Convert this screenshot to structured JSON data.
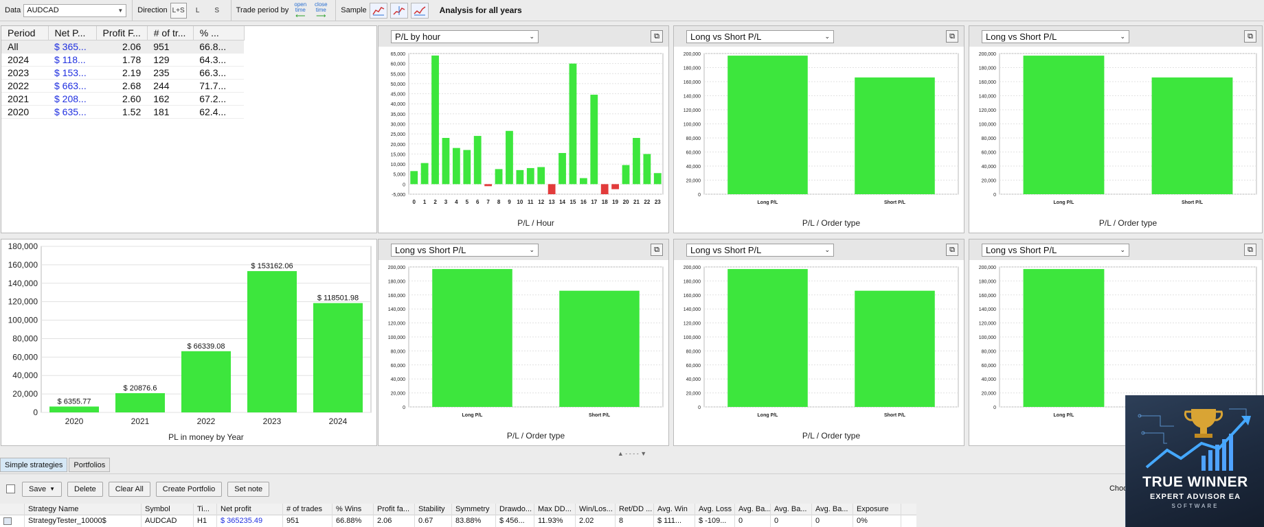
{
  "toolbar": {
    "data_label": "Data",
    "symbol_value": "AUDCAD",
    "direction_label": "Direction",
    "direction_options": [
      "L+S",
      "L",
      "S"
    ],
    "trade_period_label": "Trade period by",
    "open_time_l1": "open",
    "open_time_l2": "time",
    "close_time_l1": "close",
    "close_time_l2": "time",
    "sample_label": "Sample",
    "analysis_title": "Analysis for all years"
  },
  "summary_table": {
    "headers": [
      "Period",
      "Net P...",
      "Profit F...",
      "# of tr...",
      "% ..."
    ],
    "rows": [
      [
        "All",
        "$ 365...",
        "2.06",
        "951",
        "66.8..."
      ],
      [
        "2024",
        "$ 118...",
        "1.78",
        "129",
        "64.3..."
      ],
      [
        "2023",
        "$ 153...",
        "2.19",
        "235",
        "66.3..."
      ],
      [
        "2022",
        "$ 663...",
        "2.68",
        "244",
        "71.7..."
      ],
      [
        "2021",
        "$ 208...",
        "2.60",
        "162",
        "67.2..."
      ],
      [
        "2020",
        "$ 635...",
        "1.52",
        "181",
        "62.4..."
      ]
    ]
  },
  "chart_panels": {
    "hourly": {
      "selector": "P/L by hour"
    },
    "p2": {
      "selector": "Long vs Short P/L"
    },
    "p3": {
      "selector": "Long vs Short P/L"
    },
    "p5": {
      "selector": "Long vs Short P/L"
    },
    "p6": {
      "selector": "Long vs Short P/L"
    },
    "p7": {
      "selector": "Long vs Short P/L"
    }
  },
  "chart_data": [
    {
      "id": "pl_by_hour",
      "type": "bar",
      "xlabel": "P/L / Hour",
      "categories": [
        "0",
        "1",
        "2",
        "3",
        "4",
        "5",
        "6",
        "7",
        "8",
        "9",
        "10",
        "11",
        "12",
        "13",
        "14",
        "15",
        "16",
        "17",
        "18",
        "19",
        "20",
        "21",
        "22",
        "23"
      ],
      "values": [
        6500,
        10500,
        64000,
        23000,
        18000,
        17000,
        24000,
        -1000,
        7500,
        26500,
        7000,
        8000,
        8500,
        -5000,
        15500,
        60000,
        3000,
        44500,
        -5000,
        -2500,
        9500,
        23000,
        15000,
        5500
      ],
      "ylim": [
        -5000,
        65000
      ],
      "yticks": [
        "65,000",
        "60,000",
        "55,000",
        "50,000",
        "45,000",
        "40,000",
        "35,000",
        "30,000",
        "25,000",
        "20,000",
        "15,000",
        "10,000",
        "5,000",
        "0",
        "-5,000"
      ],
      "colors": {
        "positive": "#3de63d",
        "negative": "#e23b3b"
      }
    },
    {
      "id": "long_short_1",
      "type": "bar",
      "xlabel": "P/L / Order type",
      "categories": [
        "Long P/L",
        "Short P/L"
      ],
      "values": [
        197000,
        166000
      ],
      "ylim": [
        0,
        200000
      ],
      "yticks": [
        "200,000",
        "180,000",
        "160,000",
        "140,000",
        "120,000",
        "100,000",
        "80,000",
        "60,000",
        "40,000",
        "20,000",
        "0"
      ]
    },
    {
      "id": "long_short_2",
      "type": "bar",
      "xlabel": "P/L / Order type",
      "categories": [
        "Long P/L",
        "Short P/L"
      ],
      "values": [
        197000,
        166000
      ],
      "ylim": [
        0,
        200000
      ],
      "yticks": [
        "200,000",
        "180,000",
        "160,000",
        "140,000",
        "120,000",
        "100,000",
        "80,000",
        "60,000",
        "40,000",
        "20,000",
        "0"
      ]
    },
    {
      "id": "pl_by_year",
      "type": "bar",
      "xlabel": "PL in money by Year",
      "categories": [
        "2020",
        "2021",
        "2022",
        "2023",
        "2024"
      ],
      "values": [
        6355.77,
        20876.6,
        66339.08,
        153162.06,
        118501.98
      ],
      "data_labels": [
        "$ 6355.77",
        "$ 20876.6",
        "$ 66339.08",
        "$ 153162.06",
        "$ 118501.98"
      ],
      "ylim": [
        0,
        180000
      ],
      "yticks": [
        "180,000",
        "160,000",
        "140,000",
        "120,000",
        "100,000",
        "80,000",
        "60,000",
        "40,000",
        "20,000",
        "0"
      ]
    },
    {
      "id": "long_short_3",
      "type": "bar",
      "xlabel": "P/L / Order type",
      "categories": [
        "Long P/L",
        "Short P/L"
      ],
      "values": [
        197000,
        166000
      ],
      "ylim": [
        0,
        200000
      ],
      "yticks": [
        "200,000",
        "180,000",
        "160,000",
        "140,000",
        "120,000",
        "100,000",
        "80,000",
        "60,000",
        "40,000",
        "20,000",
        "0"
      ]
    },
    {
      "id": "long_short_4",
      "type": "bar",
      "xlabel": "P/L / Order type",
      "categories": [
        "Long P/L",
        "Short P/L"
      ],
      "values": [
        197000,
        166000
      ],
      "ylim": [
        0,
        200000
      ],
      "yticks": [
        "200,000",
        "180,000",
        "160,000",
        "140,000",
        "120,000",
        "100,000",
        "80,000",
        "60,000",
        "40,000",
        "20,000",
        "0"
      ]
    },
    {
      "id": "long_short_5",
      "type": "bar",
      "xlabel": "P/L / Or",
      "categories": [
        "Long P/L"
      ],
      "values": [
        197000
      ],
      "ylim": [
        0,
        200000
      ],
      "yticks": [
        "200,000",
        "180,000",
        "160,000",
        "140,000",
        "120,000",
        "100,000",
        "80,000",
        "60,000",
        "40,000",
        "20,000",
        "0"
      ]
    }
  ],
  "bottom": {
    "tabs": [
      "Simple strategies",
      "Portfolios"
    ],
    "buttons": {
      "save": "Save",
      "delete": "Delete",
      "clear_all": "Clear All",
      "create_portfolio": "Create Portfolio",
      "set_note": "Set note"
    },
    "choose_view": "Choose vie",
    "grid_headers": [
      "Strategy Name",
      "Symbol",
      "Ti...",
      "Net profit",
      "# of trades",
      "% Wins",
      "Profit fa...",
      "Stability",
      "Symmetry",
      "Drawdo...",
      "Max DD...",
      "Win/Los...",
      "Ret/DD ...",
      "Avg. Win",
      "Avg. Loss",
      "Avg. Ba...",
      "Avg. Ba...",
      "Avg. Ba...",
      "Exposure"
    ],
    "grid_row": [
      "StrategyTester_10000$",
      "AUDCAD",
      "H1",
      "$ 365235.49",
      "951",
      "66.88%",
      "2.06",
      "0.67",
      "83.88%",
      "$ 456...",
      "11.93%",
      "2.02",
      "8",
      "$ 111...",
      "$ -109...",
      "0",
      "0",
      "0",
      "0%"
    ]
  },
  "logo": {
    "line1": "TRUE WINNER",
    "line2": "EXPERT ADVISOR EA",
    "line3": "SOFTWARE"
  },
  "colors": {
    "bar_green": "#3de63d",
    "bar_red": "#e23b3b",
    "link_blue": "#1f2fe0"
  }
}
